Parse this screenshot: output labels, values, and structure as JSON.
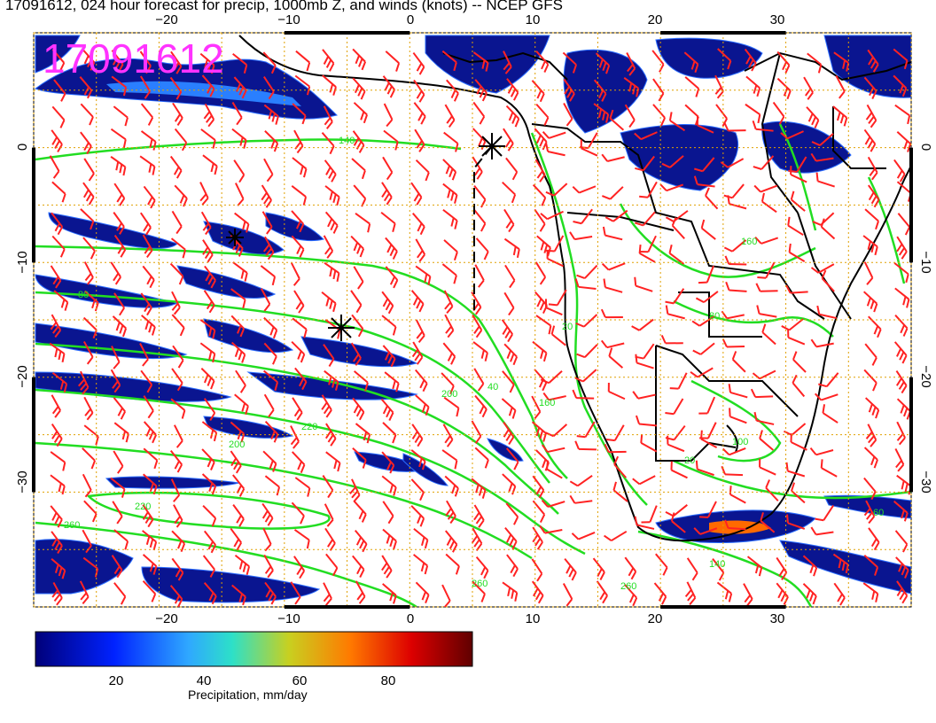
{
  "header": {
    "title": "17091612, 024 hour forecast for precip, 1000mb Z, and winds (knots) -- NCEP GFS"
  },
  "map": {
    "datestamp": "17091612",
    "lon_range": [
      -30,
      40
    ],
    "lat_range": [
      -40,
      10
    ],
    "lon_ticks": [
      "−20",
      "−10",
      "0",
      "10",
      "20",
      "30"
    ],
    "lat_ticks": [
      "0",
      "−10",
      "−20",
      "−30"
    ],
    "contour_labels": [
      "140",
      "80",
      "200",
      "260",
      "260",
      "220",
      "160",
      "100",
      "20",
      "40",
      "60",
      "80",
      "140",
      "220",
      "260",
      "20",
      "200",
      "160"
    ],
    "colors": {
      "coast": "#000000",
      "contour": "#22dd22",
      "wind": "#ff2222",
      "grid": "#e0a000",
      "precip_low": "#0a1590"
    }
  },
  "colorbar": {
    "title": "Precipitation, mm/day",
    "labels": [
      "20",
      "40",
      "60",
      "80"
    ],
    "range": [
      0,
      100
    ]
  }
}
